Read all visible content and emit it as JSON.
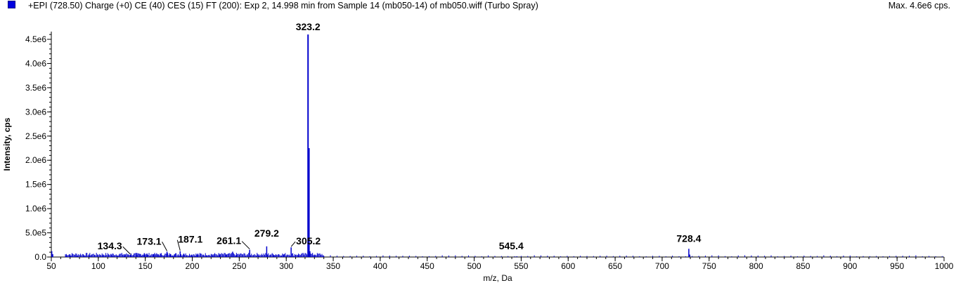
{
  "header": {
    "title": "+EPI (728.50) Charge (+0) CE (40) CES (15) FT (200): Exp 2, 14.998 min from Sample 14 (mb050-14) of mb050.wiff (Turbo Spray)",
    "max_label": "Max. 4.6e6 cps.",
    "series_color": "#0000cc"
  },
  "chart_data": {
    "type": "bar",
    "title": "+EPI (728.50) Charge (+0) CE (40) CES (15) FT (200): Exp 2, 14.998 min from Sample 14 (mb050-14) of mb050.wiff (Turbo Spray)",
    "xlabel": "m/z, Da",
    "ylabel": "Intensity, cps",
    "xlim": [
      50,
      1000
    ],
    "ylim": [
      0,
      4700000.0
    ],
    "x_ticks": [
      "50",
      "100",
      "150",
      "200",
      "250",
      "300",
      "350",
      "400",
      "450",
      "500",
      "550",
      "600",
      "650",
      "700",
      "750",
      "800",
      "850",
      "900",
      "950",
      "1000"
    ],
    "y_ticks": [
      "0.0",
      "5.0e5",
      "1.0e6",
      "1.5e6",
      "2.0e6",
      "2.5e6",
      "3.0e6",
      "3.5e6",
      "4.0e6",
      "4.5e6"
    ],
    "grid": false,
    "peaks": [
      {
        "mz": 50.5,
        "intensity": 120000
      },
      {
        "mz": 51.5,
        "intensity": 60000
      },
      {
        "mz": 66,
        "intensity": 30000
      },
      {
        "mz": 70,
        "intensity": 25000
      },
      {
        "mz": 77,
        "intensity": 30000
      },
      {
        "mz": 85,
        "intensity": 20000
      },
      {
        "mz": 91,
        "intensity": 25000
      },
      {
        "mz": 105,
        "intensity": 25000
      },
      {
        "mz": 115,
        "intensity": 25000
      },
      {
        "mz": 121,
        "intensity": 20000
      },
      {
        "mz": 128,
        "intensity": 30000
      },
      {
        "mz": 134.3,
        "intensity": 40000
      },
      {
        "mz": 141,
        "intensity": 40000
      },
      {
        "mz": 145,
        "intensity": 60000
      },
      {
        "mz": 149,
        "intensity": 80000
      },
      {
        "mz": 152,
        "intensity": 50000
      },
      {
        "mz": 159,
        "intensity": 60000
      },
      {
        "mz": 163,
        "intensity": 50000
      },
      {
        "mz": 166,
        "intensity": 60000
      },
      {
        "mz": 173.1,
        "intensity": 110000
      },
      {
        "mz": 177,
        "intensity": 60000
      },
      {
        "mz": 181,
        "intensity": 50000
      },
      {
        "mz": 187.1,
        "intensity": 120000
      },
      {
        "mz": 191,
        "intensity": 70000
      },
      {
        "mz": 199,
        "intensity": 40000
      },
      {
        "mz": 205,
        "intensity": 40000
      },
      {
        "mz": 215,
        "intensity": 35000
      },
      {
        "mz": 222,
        "intensity": 30000
      },
      {
        "mz": 229,
        "intensity": 40000
      },
      {
        "mz": 236,
        "intensity": 50000
      },
      {
        "mz": 243,
        "intensity": 110000
      },
      {
        "mz": 247,
        "intensity": 40000
      },
      {
        "mz": 261.1,
        "intensity": 150000
      },
      {
        "mz": 270,
        "intensity": 50000
      },
      {
        "mz": 279.2,
        "intensity": 220000
      },
      {
        "mz": 287,
        "intensity": 40000
      },
      {
        "mz": 297,
        "intensity": 40000
      },
      {
        "mz": 305.2,
        "intensity": 200000
      },
      {
        "mz": 313,
        "intensity": 30000
      },
      {
        "mz": 323.2,
        "intensity": 4600000
      },
      {
        "mz": 324.2,
        "intensity": 2250000
      },
      {
        "mz": 325.2,
        "intensity": 120000
      },
      {
        "mz": 330,
        "intensity": 20000
      },
      {
        "mz": 545.4,
        "intensity": 15000
      },
      {
        "mz": 728.4,
        "intensity": 170000
      },
      {
        "mz": 729.4,
        "intensity": 50000
      }
    ],
    "peak_labels": [
      {
        "text": "323.2",
        "mz": 323.2,
        "intensity": 4600000
      },
      {
        "text": "134.3",
        "mz": 134.3,
        "intensity": 40000
      },
      {
        "text": "173.1",
        "mz": 173.1,
        "intensity": 110000
      },
      {
        "text": "187.1",
        "mz": 187.1,
        "intensity": 120000
      },
      {
        "text": "261.1",
        "mz": 261.1,
        "intensity": 150000
      },
      {
        "text": "279.2",
        "mz": 279.2,
        "intensity": 220000
      },
      {
        "text": "305.2",
        "mz": 305.2,
        "intensity": 200000
      },
      {
        "text": "545.4",
        "mz": 545.4,
        "intensity": 15000
      },
      {
        "text": "728.4",
        "mz": 728.4,
        "intensity": 170000
      }
    ]
  }
}
